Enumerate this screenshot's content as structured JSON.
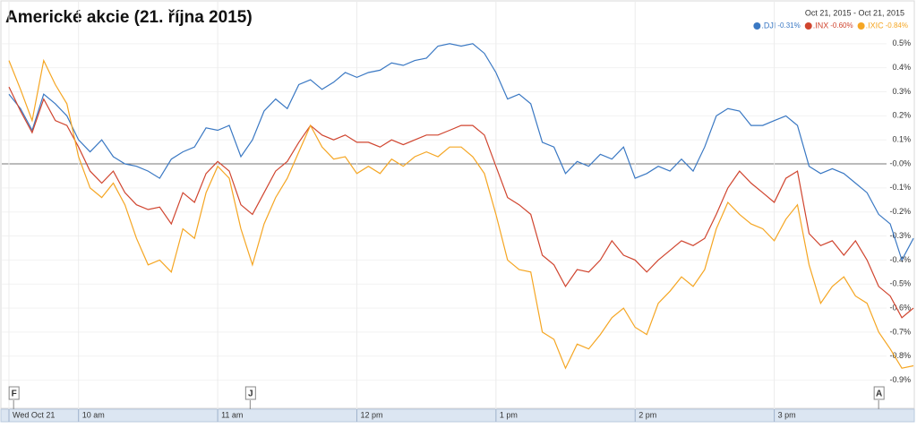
{
  "chart_data": {
    "type": "line",
    "title": "Americké akcie (21. října 2015)",
    "date_range": "Oct 21, 2015  -  Oct 21, 2015",
    "x": [
      570,
      575,
      580,
      585,
      590,
      595,
      600,
      605,
      610,
      615,
      620,
      625,
      630,
      635,
      640,
      645,
      650,
      655,
      660,
      665,
      670,
      675,
      680,
      685,
      690,
      695,
      700,
      705,
      710,
      715,
      720,
      725,
      730,
      735,
      740,
      745,
      750,
      755,
      760,
      765,
      770,
      775,
      780,
      785,
      790,
      795,
      800,
      805,
      810,
      815,
      820,
      825,
      830,
      835,
      840,
      845,
      850,
      855,
      860,
      865,
      870,
      875,
      880,
      885,
      890,
      895,
      900,
      905,
      910,
      915,
      920,
      925,
      930,
      935,
      940,
      945,
      950,
      955,
      960
    ],
    "xlim": [
      570,
      960
    ],
    "xticks": [
      {
        "value": 570,
        "label": "Wed Oct 21"
      },
      {
        "value": 600,
        "label": "10 am"
      },
      {
        "value": 660,
        "label": "11 am"
      },
      {
        "value": 720,
        "label": "12 pm"
      },
      {
        "value": 780,
        "label": "1 pm"
      },
      {
        "value": 840,
        "label": "2 pm"
      },
      {
        "value": 900,
        "label": "3 pm"
      }
    ],
    "ylim": [
      -0.95,
      0.6
    ],
    "yticks": [
      {
        "value": 0.5,
        "label": "0.5%"
      },
      {
        "value": 0.4,
        "label": "0.4%"
      },
      {
        "value": 0.3,
        "label": "0.3%"
      },
      {
        "value": 0.2,
        "label": "0.2%"
      },
      {
        "value": 0.1,
        "label": "0.1%"
      },
      {
        "value": 0,
        "label": "-0.0%"
      },
      {
        "value": -0.1,
        "label": "-0.1%"
      },
      {
        "value": -0.2,
        "label": "-0.2%"
      },
      {
        "value": -0.3,
        "label": "-0.3%"
      },
      {
        "value": -0.4,
        "label": "-0.4%"
      },
      {
        "value": -0.5,
        "label": "-0.5%"
      },
      {
        "value": -0.6,
        "label": "-0.6%"
      },
      {
        "value": -0.7,
        "label": "-0.7%"
      },
      {
        "value": -0.8,
        "label": "-0.8%"
      },
      {
        "value": -0.9,
        "label": "-0.9%"
      }
    ],
    "grid": true,
    "legend_position": "top-right",
    "series": [
      {
        "name": ".DJI",
        "change": "-0.31%",
        "color": "#3a78c3",
        "values": [
          0.29,
          0.23,
          0.14,
          0.29,
          0.25,
          0.2,
          0.1,
          0.05,
          0.1,
          0.03,
          0.0,
          -0.01,
          -0.03,
          -0.06,
          0.02,
          0.05,
          0.07,
          0.15,
          0.14,
          0.16,
          0.03,
          0.1,
          0.22,
          0.27,
          0.23,
          0.33,
          0.35,
          0.31,
          0.34,
          0.38,
          0.36,
          0.38,
          0.39,
          0.42,
          0.41,
          0.43,
          0.44,
          0.49,
          0.5,
          0.49,
          0.5,
          0.46,
          0.38,
          0.27,
          0.29,
          0.25,
          0.09,
          0.07,
          -0.04,
          0.01,
          -0.01,
          0.04,
          0.02,
          0.07,
          -0.06,
          -0.04,
          -0.01,
          -0.03,
          0.02,
          -0.03,
          0.07,
          0.2,
          0.23,
          0.22,
          0.16,
          0.16,
          0.18,
          0.2,
          0.16,
          -0.01,
          -0.04,
          -0.02,
          -0.04,
          -0.08,
          -0.12,
          -0.21,
          -0.25,
          -0.4,
          -0.31
        ]
      },
      {
        "name": ".INX",
        "change": "-0.60%",
        "color": "#d0452f",
        "values": [
          0.32,
          0.22,
          0.13,
          0.27,
          0.18,
          0.16,
          0.07,
          -0.03,
          -0.08,
          -0.03,
          -0.12,
          -0.17,
          -0.19,
          -0.18,
          -0.25,
          -0.12,
          -0.16,
          -0.04,
          0.01,
          -0.03,
          -0.17,
          -0.21,
          -0.12,
          -0.03,
          0.01,
          0.09,
          0.16,
          0.12,
          0.1,
          0.12,
          0.09,
          0.09,
          0.07,
          0.1,
          0.08,
          0.1,
          0.12,
          0.12,
          0.14,
          0.16,
          0.16,
          0.12,
          -0.01,
          -0.14,
          -0.17,
          -0.21,
          -0.38,
          -0.42,
          -0.51,
          -0.44,
          -0.45,
          -0.4,
          -0.32,
          -0.38,
          -0.4,
          -0.45,
          -0.4,
          -0.36,
          -0.32,
          -0.34,
          -0.31,
          -0.21,
          -0.1,
          -0.03,
          -0.08,
          -0.12,
          -0.16,
          -0.06,
          -0.03,
          -0.29,
          -0.34,
          -0.32,
          -0.38,
          -0.32,
          -0.4,
          -0.51,
          -0.55,
          -0.64,
          -0.6
        ]
      },
      {
        "name": ".IXIC",
        "change": "-0.84%",
        "color": "#f5a623",
        "values": [
          0.43,
          0.31,
          0.18,
          0.43,
          0.33,
          0.25,
          0.03,
          -0.1,
          -0.14,
          -0.08,
          -0.17,
          -0.31,
          -0.42,
          -0.4,
          -0.45,
          -0.27,
          -0.31,
          -0.12,
          -0.01,
          -0.06,
          -0.27,
          -0.42,
          -0.25,
          -0.14,
          -0.06,
          0.05,
          0.16,
          0.07,
          0.02,
          0.03,
          -0.04,
          -0.01,
          -0.04,
          0.02,
          -0.01,
          0.03,
          0.05,
          0.03,
          0.07,
          0.07,
          0.03,
          -0.04,
          -0.21,
          -0.4,
          -0.44,
          -0.45,
          -0.7,
          -0.73,
          -0.85,
          -0.75,
          -0.77,
          -0.71,
          -0.64,
          -0.6,
          -0.68,
          -0.71,
          -0.58,
          -0.53,
          -0.47,
          -0.51,
          -0.44,
          -0.27,
          -0.16,
          -0.21,
          -0.25,
          -0.27,
          -0.32,
          -0.23,
          -0.17,
          -0.42,
          -0.58,
          -0.51,
          -0.47,
          -0.55,
          -0.58,
          -0.7,
          -0.77,
          -0.85,
          -0.84
        ]
      }
    ],
    "annotations": [
      {
        "x": 572,
        "label": "F"
      },
      {
        "x": 674,
        "label": "J"
      },
      {
        "x": 945,
        "label": "A"
      }
    ]
  }
}
